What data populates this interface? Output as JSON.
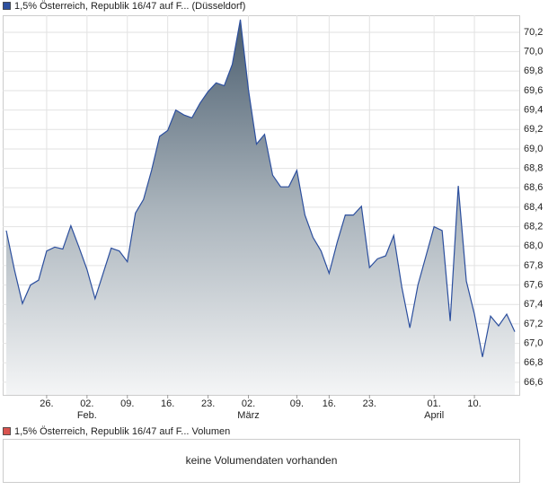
{
  "chart_data": {
    "type": "area",
    "series": [
      {
        "name": "1,5% Österreich, Republik 16/47 auf F... (Düsseldorf)",
        "color": "#2c4f9e",
        "values": [
          68.16,
          67.76,
          67.41,
          67.6,
          67.65,
          67.95,
          67.99,
          67.97,
          68.21,
          67.99,
          67.76,
          67.46,
          67.72,
          67.98,
          67.95,
          67.84,
          68.34,
          68.48,
          68.78,
          69.13,
          69.19,
          69.4,
          69.35,
          69.32,
          69.47,
          69.59,
          69.68,
          69.65,
          69.87,
          70.33,
          69.61,
          69.05,
          69.15,
          68.73,
          68.61,
          68.61,
          68.78,
          68.32,
          68.09,
          67.95,
          67.72,
          68.04,
          68.32,
          68.32,
          68.41,
          67.78,
          67.87,
          67.9,
          68.11,
          67.58,
          67.16,
          67.6,
          67.9,
          68.2,
          68.16,
          67.23,
          68.62,
          67.64,
          67.3,
          66.86,
          67.28,
          67.18,
          67.3,
          67.12
        ]
      }
    ],
    "categories": [
      null,
      null,
      null,
      null,
      null,
      "26.",
      null,
      null,
      null,
      null,
      "02.",
      null,
      null,
      null,
      null,
      "09.",
      null,
      null,
      null,
      null,
      "16.",
      null,
      null,
      null,
      null,
      "23.",
      null,
      null,
      null,
      null,
      "02.",
      null,
      null,
      null,
      null,
      null,
      "09.",
      null,
      null,
      null,
      "16.",
      null,
      null,
      null,
      null,
      "23.",
      null,
      null,
      null,
      null,
      null,
      null,
      null,
      "01.",
      null,
      null,
      null,
      null,
      "10.",
      null,
      null,
      null,
      null,
      null
    ],
    "month_labels": [
      null,
      null,
      null,
      null,
      null,
      null,
      null,
      null,
      null,
      null,
      "Feb.",
      null,
      null,
      null,
      null,
      null,
      null,
      null,
      null,
      null,
      null,
      null,
      null,
      null,
      null,
      null,
      null,
      null,
      null,
      null,
      "März",
      null,
      null,
      null,
      null,
      null,
      null,
      null,
      null,
      null,
      null,
      null,
      null,
      null,
      null,
      null,
      null,
      null,
      null,
      null,
      null,
      null,
      null,
      "April",
      null,
      null,
      null,
      null,
      null,
      null,
      null,
      null,
      null,
      null
    ],
    "ylim": [
      66.47,
      70.375
    ],
    "yticks": [
      {
        "value": 66.6,
        "label": "66,6"
      },
      {
        "value": 66.8,
        "label": "66,8"
      },
      {
        "value": 67.0,
        "label": "67,0"
      },
      {
        "value": 67.2,
        "label": "67,2"
      },
      {
        "value": 67.4,
        "label": "67,4"
      },
      {
        "value": 67.6,
        "label": "67,6"
      },
      {
        "value": 67.8,
        "label": "67,8"
      },
      {
        "value": 68.0,
        "label": "68,0"
      },
      {
        "value": 68.2,
        "label": "68,2"
      },
      {
        "value": 68.4,
        "label": "68,4"
      },
      {
        "value": 68.6,
        "label": "68,6"
      },
      {
        "value": 68.8,
        "label": "68,8"
      },
      {
        "value": 69.0,
        "label": "69,0"
      },
      {
        "value": 69.2,
        "label": "69,2"
      },
      {
        "value": 69.4,
        "label": "69,4"
      },
      {
        "value": 69.6,
        "label": "69,6"
      },
      {
        "value": 69.8,
        "label": "69,8"
      },
      {
        "value": 70.0,
        "label": "70,0"
      },
      {
        "value": 70.2,
        "label": "70,2"
      }
    ],
    "grid": true
  },
  "volume_panel": {
    "legend": "1,5% Österreich, Republik 16/47 auf F... Volumen",
    "color": "#d9534f",
    "message": "keine Volumendaten vorhanden"
  }
}
